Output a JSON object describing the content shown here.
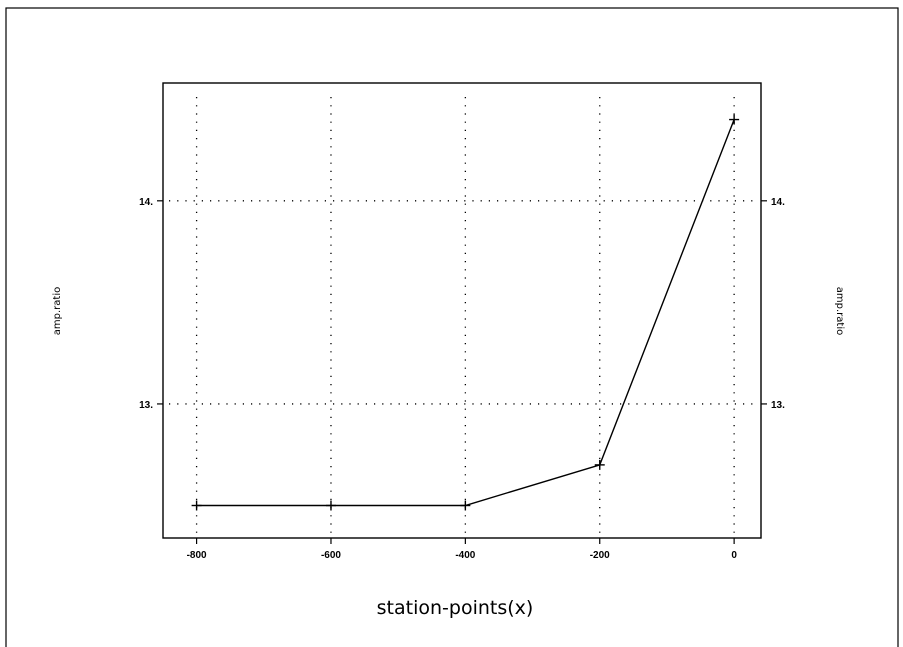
{
  "chart_data": {
    "type": "line",
    "xlabel": "station-points(x)",
    "ylabel_left": "amp.ratio",
    "ylabel_right": "amp.ratio",
    "xlim": [
      -850,
      40
    ],
    "ylim": [
      12.34,
      14.58
    ],
    "xticks": [
      -800,
      -600,
      -400,
      -200,
      0
    ],
    "xtick_labels": [
      "-800",
      "-600",
      "-400",
      "-200",
      "0"
    ],
    "yticks": [
      13,
      14
    ],
    "ytick_labels": [
      "13.",
      "14."
    ],
    "grid": true,
    "series": [
      {
        "x": [
          -800,
          -600,
          -400,
          -200,
          0
        ],
        "y": [
          12.5,
          12.5,
          12.5,
          12.7,
          14.4
        ],
        "marker": "plus"
      }
    ]
  }
}
